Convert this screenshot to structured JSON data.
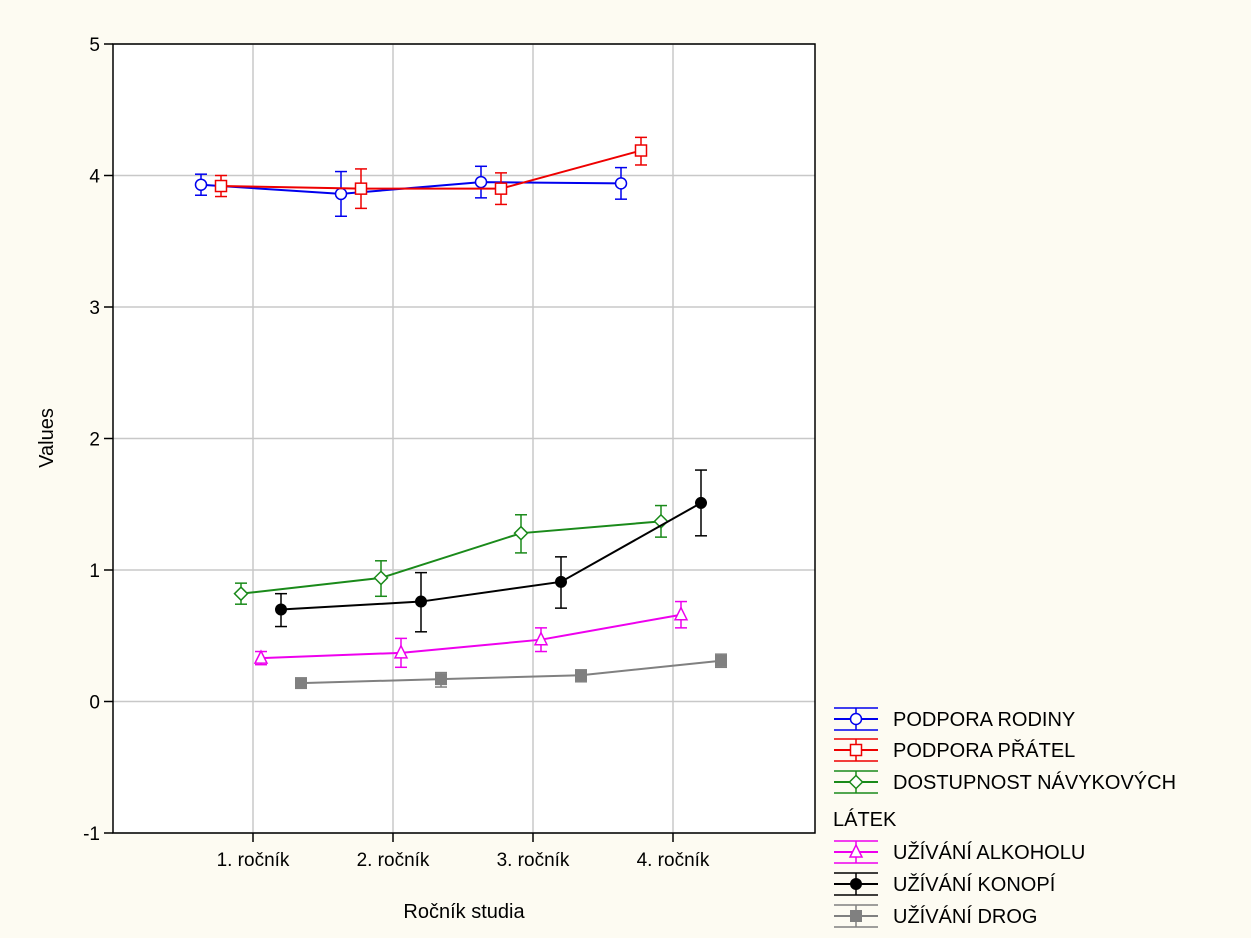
{
  "chart_data": {
    "type": "line",
    "xlabel": "Ročník studia",
    "ylabel": "Values",
    "ylim": [
      -1,
      5
    ],
    "yticks": [
      -1,
      0,
      1,
      2,
      3,
      4,
      5
    ],
    "categories": [
      "1. ročník",
      "2. ročník",
      "3. ročník",
      "4. ročník"
    ],
    "grid": true,
    "legend_position": "bottom-right, outside plot",
    "series": [
      {
        "name": "PODPORA RODINY",
        "color": "#0000ee",
        "marker": "circle-open",
        "values": [
          3.93,
          3.86,
          3.95,
          3.94
        ],
        "error_low": [
          3.85,
          3.69,
          3.83,
          3.82
        ],
        "error_high": [
          4.01,
          4.03,
          4.07,
          4.06
        ]
      },
      {
        "name": "PODPORA PŘÁTEL",
        "color": "#ee0000",
        "marker": "square-open",
        "values": [
          3.92,
          3.9,
          3.9,
          4.19
        ],
        "error_low": [
          3.84,
          3.75,
          3.78,
          4.08
        ],
        "error_high": [
          4.0,
          4.05,
          4.02,
          4.29
        ]
      },
      {
        "name": "DOSTUPNOST NÁVYKOVÝCH LÁTEK",
        "color": "#1a8a1a",
        "marker": "diamond-open",
        "values": [
          0.82,
          0.94,
          1.28,
          1.37
        ],
        "error_low": [
          0.74,
          0.8,
          1.13,
          1.25
        ],
        "error_high": [
          0.9,
          1.07,
          1.42,
          1.49
        ]
      },
      {
        "name": "UŽÍVÁNÍ ALKOHOLU",
        "color": "#ee00ee",
        "marker": "triangle-open",
        "values": [
          0.33,
          0.37,
          0.47,
          0.66
        ],
        "error_low": [
          0.28,
          0.26,
          0.38,
          0.56
        ],
        "error_high": [
          0.38,
          0.48,
          0.56,
          0.76
        ]
      },
      {
        "name": "UŽÍVÁNÍ KONOPÍ",
        "color": "#000000",
        "marker": "circle-filled",
        "values": [
          0.7,
          0.76,
          0.91,
          1.51
        ],
        "error_low": [
          0.57,
          0.53,
          0.71,
          1.26
        ],
        "error_high": [
          0.82,
          0.98,
          1.1,
          1.76
        ]
      },
      {
        "name": "UŽÍVÁNÍ DROG",
        "color": "#808080",
        "marker": "square-filled",
        "values": [
          0.14,
          0.17,
          0.2,
          0.31
        ],
        "error_low": [
          0.11,
          0.11,
          0.15,
          0.26
        ],
        "error_high": [
          0.17,
          0.22,
          0.24,
          0.36
        ]
      }
    ]
  }
}
